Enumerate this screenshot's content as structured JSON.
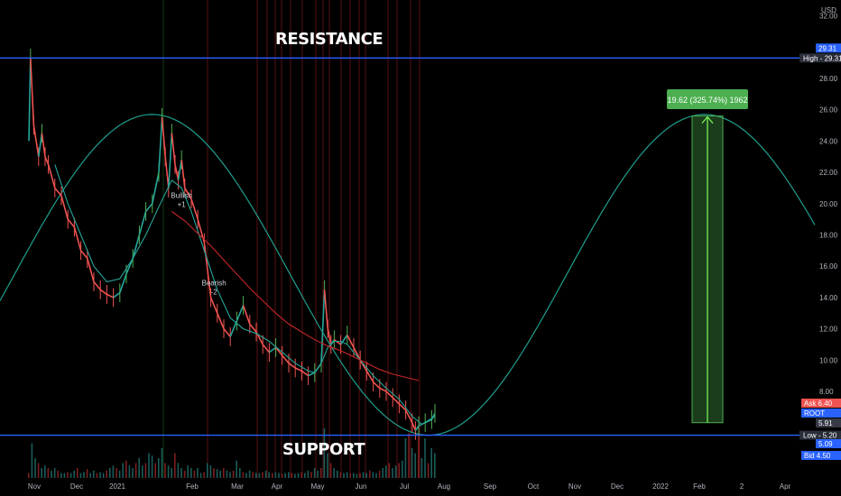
{
  "chart_data": {
    "type": "line",
    "currency": "USD",
    "title": "",
    "y_ticks": [
      "8.00",
      "10.00",
      "12.00",
      "14.00",
      "16.00",
      "18.00",
      "20.00",
      "22.00",
      "24.00",
      "26.00",
      "28.00",
      "30.00",
      "32.00"
    ],
    "x_ticks": [
      "Nov",
      "Dec",
      "2021",
      "Feb",
      "Mar",
      "Apr",
      "May",
      "Jun",
      "Jul",
      "Aug",
      "Sep",
      "Oct",
      "Nov",
      "Dec",
      "2022",
      "Feb",
      "2",
      "Apr"
    ],
    "ylim": [
      4.0,
      32.5
    ],
    "series": [
      {
        "kind": "candlestick",
        "values": [
          [
            0,
            24
          ],
          [
            0.5,
            29.3
          ],
          [
            1.5,
            25
          ],
          [
            3,
            23
          ],
          [
            4,
            24.5
          ],
          [
            5,
            23
          ],
          [
            6,
            22.5
          ],
          [
            8,
            21
          ],
          [
            10,
            20.5
          ],
          [
            12,
            19
          ],
          [
            14,
            18.5
          ],
          [
            16,
            17
          ],
          [
            18,
            16.5
          ],
          [
            20,
            15
          ],
          [
            22,
            14.5
          ],
          [
            24,
            14.2
          ],
          [
            26,
            14
          ],
          [
            28,
            14.3
          ],
          [
            30,
            15.5
          ],
          [
            32,
            16.5
          ],
          [
            34,
            18
          ],
          [
            36,
            19.5
          ],
          [
            38,
            20
          ],
          [
            40,
            22
          ],
          [
            41,
            25.5
          ],
          [
            42,
            23
          ],
          [
            43,
            21
          ],
          [
            44,
            24.5
          ],
          [
            45,
            22.5
          ],
          [
            46,
            21.5
          ],
          [
            47,
            22.8
          ],
          [
            48,
            21
          ],
          [
            50,
            20.3
          ],
          [
            52,
            19
          ],
          [
            54,
            17.5
          ],
          [
            56,
            14
          ],
          [
            58,
            13
          ],
          [
            60,
            12
          ],
          [
            62,
            11.5
          ],
          [
            64,
            12.5
          ],
          [
            66,
            13.5
          ],
          [
            68,
            12.3
          ],
          [
            70,
            11.8
          ],
          [
            72,
            11
          ],
          [
            74,
            10.5
          ],
          [
            76,
            10.8
          ],
          [
            78,
            10.3
          ],
          [
            80,
            9.8
          ],
          [
            82,
            9.5
          ],
          [
            84,
            9.3
          ],
          [
            86,
            9
          ],
          [
            88,
            9.2
          ],
          [
            90,
            9.8
          ],
          [
            91,
            14.5
          ],
          [
            92,
            12
          ],
          [
            93,
            11
          ],
          [
            94,
            11.3
          ],
          [
            96,
            11
          ],
          [
            98,
            11.6
          ],
          [
            100,
            10.8
          ],
          [
            102,
            10
          ],
          [
            104,
            9.3
          ],
          [
            106,
            8.6
          ],
          [
            108,
            8.2
          ],
          [
            110,
            8
          ],
          [
            112,
            7.6
          ],
          [
            114,
            7.2
          ],
          [
            116,
            6.8
          ],
          [
            118,
            6
          ],
          [
            119,
            5.5
          ],
          [
            120,
            5.8
          ],
          [
            122,
            6
          ],
          [
            124,
            6.2
          ],
          [
            125,
            6.6
          ]
        ]
      },
      {
        "name": "",
        "kind": "moving-average-short",
        "values": [
          [
            8,
            22.5
          ],
          [
            12,
            20
          ],
          [
            16,
            18
          ],
          [
            20,
            16
          ],
          [
            24,
            15
          ],
          [
            28,
            15.2
          ],
          [
            32,
            16.5
          ],
          [
            36,
            18
          ],
          [
            40,
            19.8
          ],
          [
            44,
            21.5
          ],
          [
            47,
            21
          ],
          [
            50,
            19.5
          ],
          [
            54,
            17
          ],
          [
            58,
            14.5
          ],
          [
            62,
            12.7
          ],
          [
            66,
            12
          ],
          [
            70,
            11.7
          ],
          [
            74,
            11.2
          ],
          [
            78,
            10.5
          ],
          [
            82,
            9.8
          ],
          [
            86,
            9.3
          ],
          [
            88,
            9.2
          ],
          [
            90,
            9.8
          ],
          [
            92,
            10.8
          ],
          [
            94,
            11.2
          ],
          [
            96,
            11.2
          ],
          [
            98,
            11
          ],
          [
            102,
            10
          ],
          [
            106,
            9
          ],
          [
            110,
            8.2
          ],
          [
            114,
            7.5
          ],
          [
            118,
            6.4
          ],
          [
            121,
            5.9
          ],
          [
            125,
            6.4
          ]
        ]
      },
      {
        "name": "",
        "kind": "moving-average-long",
        "values": [
          [
            44,
            19.5
          ],
          [
            48,
            18.9
          ],
          [
            52,
            18.1
          ],
          [
            56,
            17.3
          ],
          [
            60,
            16.4
          ],
          [
            64,
            15.5
          ],
          [
            68,
            14.6
          ],
          [
            72,
            13.8
          ],
          [
            76,
            13
          ],
          [
            80,
            12.3
          ],
          [
            84,
            11.8
          ],
          [
            88,
            11.3
          ],
          [
            92,
            10.9
          ],
          [
            96,
            10.6
          ],
          [
            100,
            10.2
          ],
          [
            104,
            9.8
          ],
          [
            108,
            9.4
          ],
          [
            112,
            9.1
          ],
          [
            116,
            8.9
          ],
          [
            120,
            8.7
          ]
        ]
      }
    ],
    "cycle_curve": {
      "peak_x": 38,
      "peak_y": 25.7,
      "trough_y": 5.2,
      "period": 170
    },
    "levels": [
      {
        "name": "High",
        "value": 29.31,
        "label": "High",
        "text": "29.31",
        "color": "#2962ff"
      },
      {
        "name": "Low",
        "value": 5.2,
        "label": "Low",
        "text": "5.20",
        "color": "#2962ff"
      }
    ],
    "price_tags": [
      {
        "label": "",
        "text": "29.31",
        "value": 29.31,
        "color": "#2962ff"
      },
      {
        "label": "Ask",
        "text": "6.40",
        "value": 6.4,
        "color": "#f05350"
      },
      {
        "label": "ROOT",
        "text": "",
        "value": 5.91,
        "color": "#2962ff"
      },
      {
        "label": "",
        "text": "5.91",
        "value": 5.91,
        "color": "#363a45"
      },
      {
        "label": "",
        "text": "5.09",
        "value": 5.09,
        "color": "#2962ff"
      },
      {
        "label": "Bid",
        "text": "4.50",
        "value": 4.5,
        "color": "#2962ff"
      }
    ],
    "signals": [
      {
        "label": "Bullish",
        "value": "+1",
        "x": 47,
        "y": 19.8
      },
      {
        "label": "Bearish",
        "value": "-2",
        "x": 57,
        "y": 14.2
      }
    ],
    "measure": {
      "label": "19.62 (325.74%) 1962",
      "from": 6.0,
      "to": 25.6,
      "x_start": 178,
      "x_end": 188
    },
    "annotations": {
      "resistance": "RESISTANCE",
      "support": "SUPPORT"
    },
    "volume_max": 1,
    "volume": [
      0.1,
      0.7,
      0.4,
      0.3,
      0.2,
      0.25,
      0.2,
      0.15,
      0.2,
      0.15,
      0.1,
      0.1,
      0.12,
      0.1,
      0.15,
      0.2,
      0.1,
      0.12,
      0.18,
      0.1,
      0.15,
      0.1,
      0.12,
      0.1,
      0.15,
      0.2,
      0.25,
      0.2,
      0.15,
      0.3,
      0.35,
      0.25,
      0.2,
      0.3,
      0.4,
      0.25,
      0.3,
      0.5,
      0.45,
      0.3,
      0.4,
      0.6,
      0.3,
      0.25,
      0.2,
      0.5,
      0.3,
      0.2,
      0.15,
      0.25,
      0.2,
      0.15,
      0.2,
      0.1,
      0.12,
      0.3,
      0.25,
      0.2,
      0.18,
      0.15,
      0.2,
      0.15,
      0.12,
      0.15,
      0.35,
      0.2,
      0.12,
      0.1,
      0.15,
      0.12,
      0.1,
      0.1,
      0.12,
      0.15,
      0.12,
      0.1,
      0.12,
      0.1,
      0.08,
      0.1,
      0.12,
      0.1,
      0.08,
      0.1,
      0.12,
      0.1,
      0.15,
      0.12,
      0.2,
      0.15,
      0.2,
      1.0,
      0.5,
      0.3,
      0.2,
      0.15,
      0.12,
      0.1,
      0.12,
      0.1,
      0.1,
      0.08,
      0.1,
      0.12,
      0.1,
      0.15,
      0.12,
      0.1,
      0.15,
      0.2,
      0.25,
      0.3,
      0.2,
      0.25,
      0.3,
      0.35,
      0.8,
      0.9,
      0.6,
      0.5,
      0.9,
      0.4,
      0.8,
      0.3,
      0.6,
      0.5
    ]
  }
}
